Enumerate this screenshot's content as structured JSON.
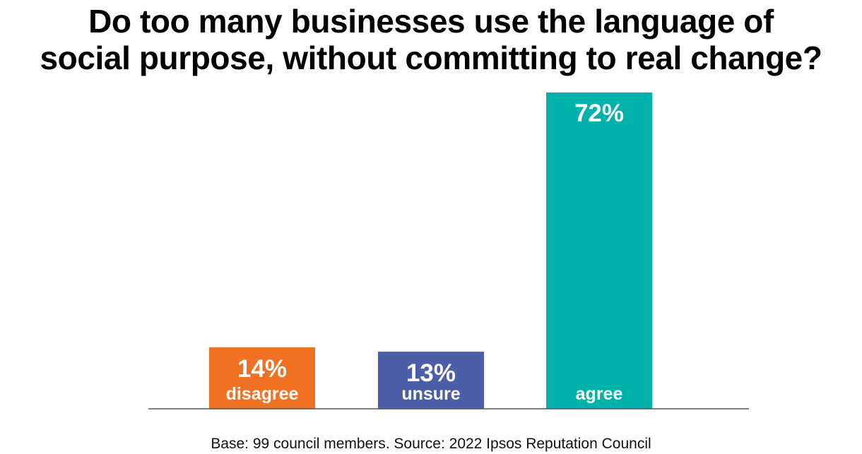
{
  "title_lines": [
    "Do too many businesses use the language of",
    "social purpose, without committing to real change?"
  ],
  "footnote": "Base: 99 council members. Source: 2022 Ipsos Reputation Council",
  "chart_data": {
    "type": "bar",
    "title": "Do too many businesses use the language of social purpose, without committing to real change?",
    "categories": [
      "disagree",
      "unsure",
      "agree"
    ],
    "values": [
      14,
      13,
      72
    ],
    "value_labels": [
      "14%",
      "13%",
      "72%"
    ],
    "colors": [
      "#f07122",
      "#4b5ea8",
      "#00b2a9"
    ],
    "unit": "%",
    "ylim": [
      0,
      72
    ],
    "grid": false,
    "legend": "none",
    "xlabel": "",
    "ylabel": ""
  },
  "colors": {
    "background": "#ffffff",
    "text": "#000000",
    "axis": "#555555",
    "bar_text": "#ffffff"
  }
}
